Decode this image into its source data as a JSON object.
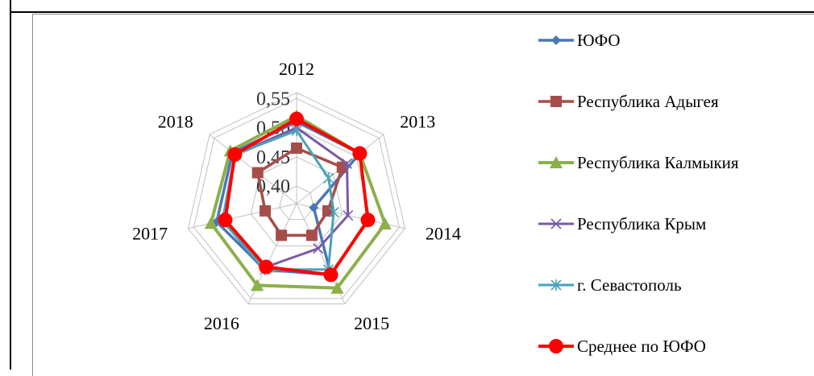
{
  "chart_data": {
    "type": "radar",
    "categories": [
      "2012",
      "2013",
      "2014",
      "2015",
      "2016",
      "2017",
      "2018"
    ],
    "r_ticks": [
      "0,40",
      "0,45",
      "0,50",
      "0,55"
    ],
    "r_range": [
      0.37,
      0.56
    ],
    "series": [
      {
        "name": "ЮФО",
        "color": "#4a78b5",
        "marker": "diamond",
        "values": [
          0.51,
          0.508,
          0.4,
          0.505,
          0.495,
          0.51,
          0.51
        ]
      },
      {
        "name": "Республика Адыгея",
        "color": "#a64d4a",
        "marker": "square",
        "values": [
          0.465,
          0.47,
          0.425,
          0.43,
          0.43,
          0.425,
          0.455
        ]
      },
      {
        "name": "Республика Калмыкия",
        "color": "#8bb04a",
        "marker": "triangle",
        "values": [
          0.52,
          0.508,
          0.525,
          0.53,
          0.525,
          0.52,
          0.515
        ]
      },
      {
        "name": "Республика Крым",
        "color": "#7b5aa6",
        "marker": "cross",
        "values": [
          0.5,
          0.48,
          0.46,
          0.455,
          0.49,
          0.495,
          0.505
        ]
      },
      {
        "name": "г. Севастополь",
        "color": "#4aa2b8",
        "marker": "star",
        "values": [
          0.495,
          0.44,
          0.435,
          0.495,
          0.495,
          0.5,
          0.505
        ]
      },
      {
        "name": "Среднее по ЮФО",
        "color": "#ff0000",
        "marker": "circle",
        "values": [
          0.515,
          0.508,
          0.495,
          0.505,
          0.49,
          0.495,
          0.505
        ]
      }
    ],
    "grid": true,
    "legend_position": "right"
  }
}
